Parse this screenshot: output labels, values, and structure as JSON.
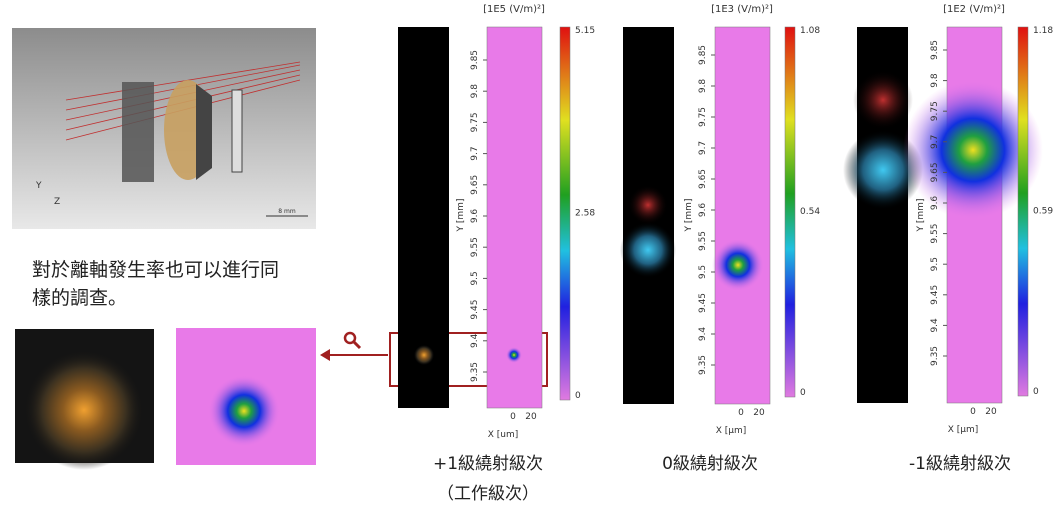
{
  "caption": "對於離軸發生率也可以進行同樣的調查。",
  "lens_view": {
    "axis_y": "Y",
    "axis_z": "Z",
    "scale": "8 mm"
  },
  "panels": [
    {
      "unit": "[1E5 (V/m)²]",
      "colorbar_ticks": [
        "5.15",
        "2.58",
        "0"
      ],
      "y_label": "Y [mm]",
      "y_ticks": [
        "9.85",
        "9.8",
        "9.75",
        "9.7",
        "9.65",
        "9.6",
        "9.55",
        "9.5",
        "9.45",
        "9.4",
        "9.35"
      ],
      "x_ticks": [
        "0",
        "20"
      ],
      "x_label": "X [um]",
      "caption": "+1級繞射級次",
      "subcaption": "（工作級次）"
    },
    {
      "unit": "[1E3 (V/m)²]",
      "colorbar_ticks": [
        "1.08",
        "0.54",
        "0"
      ],
      "y_label": "Y [mm]",
      "y_ticks": [
        "9.85",
        "9.8",
        "9.75",
        "9.7",
        "9.65",
        "9.6",
        "9.55",
        "9.5",
        "9.45",
        "9.4",
        "9.35"
      ],
      "x_ticks": [
        "0",
        "20"
      ],
      "x_label": "X [µm]",
      "caption": "0級繞射級次"
    },
    {
      "unit": "[1E2 (V/m)²]",
      "colorbar_ticks": [
        "1.18",
        "0.59",
        "0"
      ],
      "y_label": "Y [mm]",
      "y_ticks": [
        "9.85",
        "9.8",
        "9.75",
        "9.7",
        "9.65",
        "9.6",
        "9.55",
        "9.5",
        "9.45",
        "9.4",
        "9.35"
      ],
      "x_ticks": [
        "0",
        "20"
      ],
      "x_label": "X [µm]",
      "caption": "-1級繞射級次"
    }
  ]
}
